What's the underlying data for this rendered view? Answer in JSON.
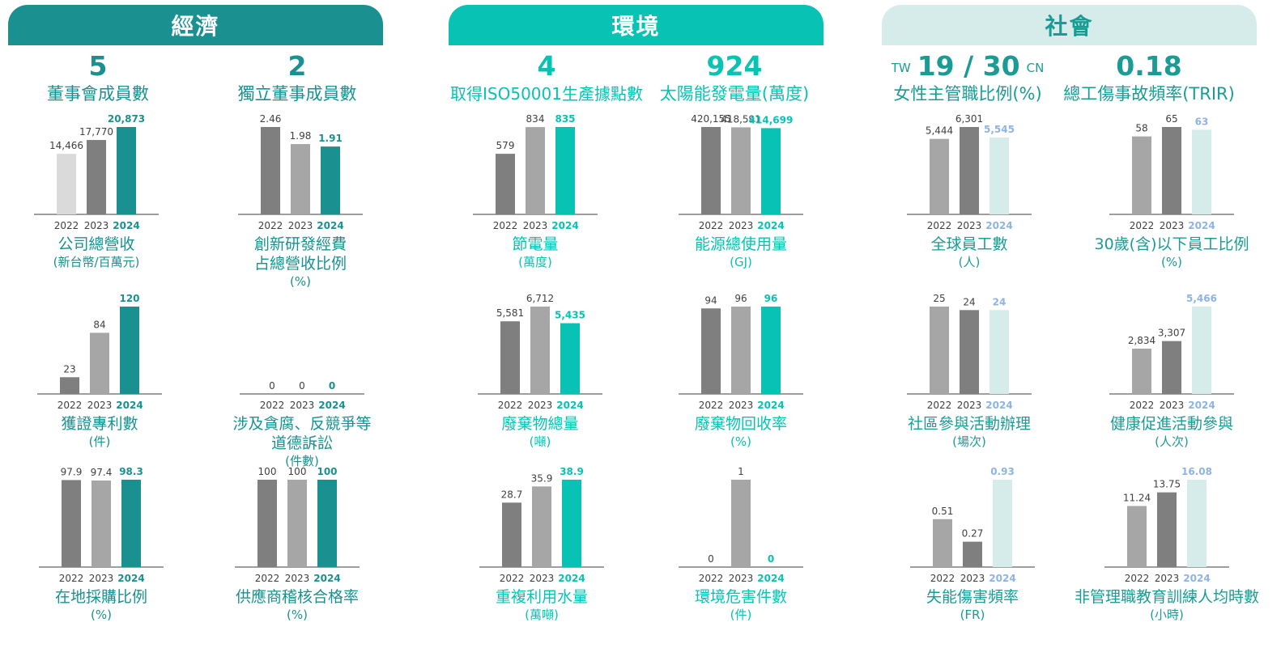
{
  "headers": [
    {
      "label": "經濟",
      "color": "#1a9190",
      "text_color": "#ffffff"
    },
    {
      "label": "環境",
      "color": "#08c3b3",
      "text_color": "#ffffff"
    },
    {
      "label": "社會",
      "color": "#d6ecea",
      "text_color": "#1a9c95"
    }
  ],
  "kpis": [
    {
      "value": "5",
      "label": "董事會成員數",
      "color": "#1a9190"
    },
    {
      "value": "2",
      "label": "獨立董事成員數",
      "color": "#1a9190"
    },
    {
      "value": "4",
      "label": "取得ISO50001生產據點數",
      "color": "#08c3b3"
    },
    {
      "value": "924",
      "label": "太陽能發電量(萬度)",
      "color": "#08c3b3"
    },
    {
      "value": "19 / 30",
      "left_tag": "TW",
      "right_tag": "CN",
      "label": "女性主管職比例(%)",
      "color": "#1a9c95"
    },
    {
      "value": "0.18",
      "label": "總工傷事故頻率(TRIR)",
      "color": "#1a9c95"
    }
  ],
  "chart_data": [
    {
      "type": "bar",
      "title": "公司總營收",
      "unit": "(新台幣/百萬元)",
      "categories": [
        "2022",
        "2023",
        "2024"
      ],
      "values": [
        14466,
        17770,
        20873
      ],
      "labels": [
        "14,466",
        "17,770",
        "20,873"
      ],
      "colors": [
        "#dadada",
        "#7f7f7f",
        "#1a9190"
      ],
      "accent": "#1a9190"
    },
    {
      "type": "bar",
      "title": "創新研發經費",
      "title2": "占總營收比例",
      "unit": "(%)",
      "categories": [
        "2022",
        "2023",
        "2024"
      ],
      "values": [
        2.46,
        1.98,
        1.91
      ],
      "labels": [
        "2.46",
        "1.98",
        "1.91"
      ],
      "colors": [
        "#7f7f7f",
        "#a6a6a6",
        "#1a9190"
      ],
      "accent": "#1a9190"
    },
    {
      "type": "bar",
      "title": "節電量",
      "unit": "(萬度)",
      "categories": [
        "2022",
        "2023",
        "2024"
      ],
      "values": [
        579,
        834,
        835
      ],
      "labels": [
        "579",
        "834",
        "835"
      ],
      "colors": [
        "#7f7f7f",
        "#a6a6a6",
        "#08c3b3"
      ],
      "accent": "#08c3b3"
    },
    {
      "type": "bar",
      "title": "能源總使用量",
      "unit": "(GJ)",
      "categories": [
        "2022",
        "2023",
        "2024"
      ],
      "values": [
        420155,
        418591,
        414699
      ],
      "labels": [
        "420,155",
        "418,591",
        "414,699"
      ],
      "colors": [
        "#7f7f7f",
        "#a6a6a6",
        "#08c3b3"
      ],
      "accent": "#08c3b3"
    },
    {
      "type": "bar",
      "title": "全球員工數",
      "unit": "(人)",
      "categories": [
        "2022",
        "2023",
        "2024"
      ],
      "values": [
        5444,
        6301,
        5545
      ],
      "labels": [
        "5,444",
        "6,301",
        "5,545"
      ],
      "colors": [
        "#a6a6a6",
        "#7f7f7f",
        "#d6ecea"
      ],
      "accent": "#8db4e2"
    },
    {
      "type": "bar",
      "title": "30歲(含)以下員工比例",
      "unit": "(%)",
      "categories": [
        "2022",
        "2023",
        "2024"
      ],
      "values": [
        58,
        65,
        63
      ],
      "labels": [
        "58",
        "65",
        "63"
      ],
      "colors": [
        "#a6a6a6",
        "#7f7f7f",
        "#d6ecea"
      ],
      "accent": "#8db4e2"
    },
    {
      "type": "bar",
      "title": "獲證專利數",
      "unit": "(件)",
      "categories": [
        "2022",
        "2023",
        "2024"
      ],
      "values": [
        23,
        84,
        120
      ],
      "labels": [
        "23",
        "84",
        "120"
      ],
      "colors": [
        "#7f7f7f",
        "#a6a6a6",
        "#1a9190"
      ],
      "accent": "#1a9190"
    },
    {
      "type": "bar",
      "title": "涉及貪腐、反競爭等",
      "title2": "道德訴訟",
      "unit": "(件數)",
      "categories": [
        "2022",
        "2023",
        "2024"
      ],
      "values": [
        0,
        0,
        0
      ],
      "labels": [
        "0",
        "0",
        "0"
      ],
      "colors": [
        "#7f7f7f",
        "#a6a6a6",
        "#1a9190"
      ],
      "accent": "#1a9190"
    },
    {
      "type": "bar",
      "title": "廢棄物總量",
      "unit": "(噸)",
      "categories": [
        "2022",
        "2023",
        "2024"
      ],
      "values": [
        5581,
        6712,
        5435
      ],
      "labels": [
        "5,581",
        "6,712",
        "5,435"
      ],
      "colors": [
        "#7f7f7f",
        "#a6a6a6",
        "#08c3b3"
      ],
      "accent": "#08c3b3"
    },
    {
      "type": "bar",
      "title": "廢棄物回收率",
      "unit": "(%)",
      "categories": [
        "2022",
        "2023",
        "2024"
      ],
      "values": [
        94,
        96,
        96
      ],
      "labels": [
        "94",
        "96",
        "96"
      ],
      "colors": [
        "#7f7f7f",
        "#a6a6a6",
        "#08c3b3"
      ],
      "accent": "#08c3b3"
    },
    {
      "type": "bar",
      "title": "社區參與活動辦理",
      "unit": "(場次)",
      "categories": [
        "2022",
        "2023",
        "2024"
      ],
      "values": [
        25,
        24,
        24
      ],
      "labels": [
        "25",
        "24",
        "24"
      ],
      "colors": [
        "#a6a6a6",
        "#7f7f7f",
        "#d6ecea"
      ],
      "accent": "#8db4e2"
    },
    {
      "type": "bar",
      "title": "健康促進活動參與",
      "unit": "(人次)",
      "categories": [
        "2022",
        "2023",
        "2024"
      ],
      "values": [
        2834,
        3307,
        5466
      ],
      "labels": [
        "2,834",
        "3,307",
        "5,466"
      ],
      "colors": [
        "#a6a6a6",
        "#7f7f7f",
        "#d6ecea"
      ],
      "accent": "#8db4e2"
    },
    {
      "type": "bar",
      "title": "在地採購比例",
      "unit": "(%)",
      "categories": [
        "2022",
        "2023",
        "2024"
      ],
      "values": [
        97.9,
        97.4,
        98.3
      ],
      "labels": [
        "97.9",
        "97.4",
        "98.3"
      ],
      "colors": [
        "#7f7f7f",
        "#a6a6a6",
        "#1a9190"
      ],
      "accent": "#1a9190"
    },
    {
      "type": "bar",
      "title": "供應商稽核合格率",
      "unit": "(%)",
      "categories": [
        "2022",
        "2023",
        "2024"
      ],
      "values": [
        100,
        100,
        100
      ],
      "labels": [
        "100",
        "100",
        "100"
      ],
      "colors": [
        "#7f7f7f",
        "#a6a6a6",
        "#1a9190"
      ],
      "accent": "#1a9190"
    },
    {
      "type": "bar",
      "title": "重複利用水量",
      "unit": "(萬噸)",
      "categories": [
        "2022",
        "2023",
        "2024"
      ],
      "values": [
        28.7,
        35.9,
        38.9
      ],
      "labels": [
        "28.7",
        "35.9",
        "38.9"
      ],
      "colors": [
        "#7f7f7f",
        "#a6a6a6",
        "#08c3b3"
      ],
      "accent": "#08c3b3"
    },
    {
      "type": "bar",
      "title": "環境危害件數",
      "unit": "(件)",
      "categories": [
        "2022",
        "2023",
        "2024"
      ],
      "values": [
        0,
        1,
        0
      ],
      "labels": [
        "0",
        "1",
        "0"
      ],
      "colors": [
        "#7f7f7f",
        "#a6a6a6",
        "#08c3b3"
      ],
      "accent": "#08c3b3"
    },
    {
      "type": "bar",
      "title": "失能傷害頻率",
      "unit": "(FR)",
      "categories": [
        "2022",
        "2023",
        "2024"
      ],
      "values": [
        0.51,
        0.27,
        0.93
      ],
      "labels": [
        "0.51",
        "0.27",
        "0.93"
      ],
      "colors": [
        "#a6a6a6",
        "#7f7f7f",
        "#d6ecea"
      ],
      "accent": "#8db4e2"
    },
    {
      "type": "bar",
      "title": "非管理職教育訓練人均時數",
      "unit": "(小時)",
      "categories": [
        "2022",
        "2023",
        "2024"
      ],
      "values": [
        11.24,
        13.75,
        16.08
      ],
      "labels": [
        "11.24",
        "13.75",
        "16.08"
      ],
      "colors": [
        "#a6a6a6",
        "#7f7f7f",
        "#d6ecea"
      ],
      "accent": "#8db4e2"
    }
  ]
}
